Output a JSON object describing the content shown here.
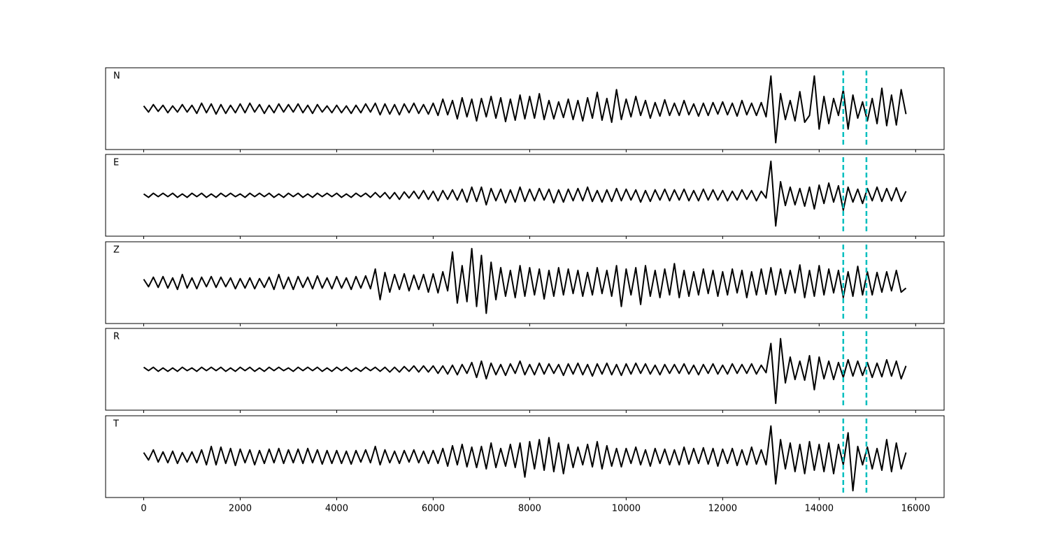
{
  "chart_data": {
    "type": "line",
    "layout": "stacked",
    "x": [
      0,
      100,
      200,
      300,
      400,
      500,
      600,
      700,
      800,
      900,
      1000,
      1100,
      1200,
      1300,
      1400,
      1500,
      1600,
      1700,
      1800,
      1900,
      2000,
      2100,
      2200,
      2300,
      2400,
      2500,
      2600,
      2700,
      2800,
      2900,
      3000,
      3100,
      3200,
      3300,
      3400,
      3500,
      3600,
      3700,
      3800,
      3900,
      4000,
      4100,
      4200,
      4300,
      4400,
      4500,
      4600,
      4700,
      4800,
      4900,
      5000,
      5100,
      5200,
      5300,
      5400,
      5500,
      5600,
      5700,
      5800,
      5900,
      6000,
      6100,
      6200,
      6300,
      6400,
      6500,
      6600,
      6700,
      6800,
      6900,
      7000,
      7100,
      7200,
      7300,
      7400,
      7500,
      7600,
      7700,
      7800,
      7900,
      8000,
      8100,
      8200,
      8300,
      8400,
      8500,
      8600,
      8700,
      8800,
      8900,
      9000,
      9100,
      9200,
      9300,
      9400,
      9500,
      9600,
      9700,
      9800,
      9900,
      10000,
      10100,
      10200,
      10300,
      10400,
      10500,
      10600,
      10700,
      10800,
      10900,
      11000,
      11100,
      11200,
      11300,
      11400,
      11500,
      11600,
      11700,
      11800,
      11900,
      12000,
      12100,
      12200,
      12300,
      12400,
      12500,
      12600,
      12700,
      12800,
      12900,
      13000,
      13100,
      13200,
      13300,
      13400,
      13500,
      13600,
      13700,
      13800,
      13900,
      14000,
      14100,
      14200,
      14300,
      14400,
      14500,
      14600,
      14700,
      14800,
      14900,
      15000,
      15100,
      15200,
      15300,
      15400,
      15500,
      15600,
      15700,
      15800
    ],
    "series": [
      {
        "name": "N",
        "color": "#000000",
        "values": [
          4,
          -5,
          6,
          -4,
          5,
          -6,
          4,
          -5,
          6,
          -5,
          5,
          -7,
          8,
          -6,
          7,
          -8,
          6,
          -7,
          5,
          -6,
          7,
          -6,
          8,
          -5,
          6,
          -7,
          5,
          -6,
          7,
          -5,
          6,
          -5,
          7,
          -6,
          5,
          -7,
          6,
          -5,
          4,
          -6,
          5,
          -6,
          4,
          -7,
          5,
          -6,
          7,
          -5,
          8,
          -9,
          7,
          -8,
          6,
          -9,
          7,
          -6,
          8,
          -7,
          6,
          -8,
          8,
          -10,
          14,
          -9,
          12,
          -15,
          16,
          -12,
          14,
          -18,
          15,
          -12,
          18,
          -14,
          16,
          -19,
          14,
          -17,
          20,
          -15,
          18,
          -14,
          22,
          -16,
          12,
          -15,
          10,
          -13,
          14,
          -16,
          12,
          -18,
          16,
          -14,
          24,
          -17,
          15,
          -20,
          28,
          -16,
          14,
          -12,
          18,
          -10,
          12,
          -14,
          9,
          -11,
          13,
          -10,
          8,
          -10,
          12,
          -9,
          7,
          -11,
          8,
          -10,
          9,
          -8,
          10,
          -9,
          8,
          -11,
          12,
          -9,
          8,
          -10,
          9,
          -12,
          48,
          -50,
          22,
          -16,
          12,
          -18,
          25,
          -20,
          -10,
          48,
          -30,
          18,
          -22,
          15,
          -10,
          28,
          -30,
          20,
          -14,
          10,
          -18,
          15,
          -22,
          30,
          -25,
          20,
          -24,
          28,
          -8
        ]
      },
      {
        "name": "E",
        "color": "#000000",
        "values": [
          2,
          -3,
          3,
          -2,
          3,
          -2,
          3,
          -3,
          2,
          -3,
          3,
          -2,
          3,
          -3,
          2,
          -3,
          3,
          -2,
          3,
          -2,
          2,
          -3,
          3,
          -2,
          3,
          -2,
          3,
          -3,
          2,
          -3,
          3,
          -2,
          3,
          -3,
          2,
          -3,
          3,
          -2,
          3,
          -2,
          3,
          -3,
          2,
          -3,
          3,
          -2,
          3,
          -3,
          4,
          -3,
          4,
          -5,
          4,
          -6,
          5,
          -4,
          6,
          -5,
          7,
          -6,
          6,
          -8,
          7,
          -6,
          8,
          -7,
          9,
          -10,
          12,
          -9,
          12,
          -14,
          10,
          -8,
          9,
          -11,
          8,
          -10,
          12,
          -9,
          9,
          -8,
          10,
          -7,
          9,
          -11,
          8,
          -10,
          9,
          -8,
          10,
          -8,
          12,
          -9,
          7,
          -10,
          8,
          -9,
          10,
          -8,
          9,
          -7,
          8,
          -10,
          7,
          -9,
          8,
          -7,
          9,
          -8,
          8,
          -7,
          9,
          -8,
          7,
          -8,
          9,
          -7,
          8,
          -7,
          7,
          -8,
          6,
          -7,
          8,
          -6,
          7,
          -8,
          6,
          -4,
          50,
          -45,
          20,
          -15,
          12,
          -14,
          10,
          -16,
          12,
          -20,
          15,
          -12,
          18,
          -10,
          14,
          -22,
          12,
          -10,
          9,
          -12,
          10,
          -8,
          12,
          -9,
          10,
          -8,
          11,
          -9,
          6
        ]
      },
      {
        "name": "Z",
        "color": "#000000",
        "values": [
          5,
          -6,
          8,
          -7,
          9,
          -8,
          7,
          -10,
          12,
          -8,
          7,
          -9,
          8,
          -6,
          9,
          -7,
          8,
          -6,
          7,
          -9,
          6,
          -8,
          7,
          -9,
          6,
          -7,
          8,
          -10,
          12,
          -9,
          8,
          -10,
          9,
          -7,
          8,
          -9,
          10,
          -8,
          7,
          -9,
          9,
          -8,
          7,
          -10,
          9,
          -8,
          10,
          -9,
          20,
          -25,
          15,
          -14,
          12,
          -10,
          13,
          -12,
          11,
          -10,
          12,
          -14,
          13,
          -15,
          16,
          -12,
          45,
          -30,
          25,
          -28,
          50,
          -35,
          40,
          -45,
          30,
          -25,
          22,
          -20,
          18,
          -22,
          25,
          -20,
          22,
          -18,
          20,
          -24,
          18,
          -20,
          22,
          -18,
          20,
          -16,
          18,
          -20,
          15,
          -18,
          22,
          -16,
          18,
          -20,
          25,
          -35,
          20,
          -18,
          22,
          -32,
          25,
          -20,
          18,
          -22,
          20,
          -18,
          28,
          -22,
          18,
          -20,
          16,
          -18,
          20,
          -16,
          18,
          -20,
          16,
          -18,
          20,
          -15,
          18,
          -22,
          16,
          -18,
          20,
          -17,
          22,
          -18,
          20,
          -16,
          18,
          -15,
          26,
          -22,
          18,
          -20,
          25,
          -18,
          20,
          -15,
          18,
          -22,
          16,
          -20,
          24,
          -18,
          16,
          -18,
          15,
          -14,
          16,
          -12,
          18,
          -14,
          -8
        ]
      },
      {
        "name": "R",
        "color": "#000000",
        "values": [
          3,
          -2,
          3,
          -3,
          2,
          -3,
          2,
          -3,
          3,
          -2,
          2,
          -3,
          3,
          -2,
          3,
          -2,
          3,
          -3,
          2,
          -3,
          3,
          -2,
          3,
          -3,
          2,
          -3,
          3,
          -2,
          3,
          -2,
          2,
          -3,
          3,
          -2,
          3,
          -2,
          3,
          -3,
          2,
          -3,
          3,
          -2,
          3,
          -3,
          2,
          -3,
          3,
          -2,
          3,
          -3,
          3,
          -4,
          3,
          -4,
          4,
          -3,
          5,
          -4,
          5,
          -4,
          5,
          -6,
          5,
          -7,
          6,
          -8,
          7,
          -6,
          10,
          -12,
          12,
          -14,
          9,
          -8,
          7,
          -9,
          8,
          -6,
          12,
          -8,
          7,
          -8,
          9,
          -7,
          8,
          -6,
          7,
          -9,
          8,
          -7,
          9,
          -8,
          7,
          -10,
          8,
          -7,
          9,
          -8,
          7,
          -9,
          8,
          -7,
          9,
          -6,
          8,
          -7,
          6,
          -8,
          7,
          -6,
          7,
          -6,
          8,
          -7,
          6,
          -8,
          7,
          -6,
          8,
          -7,
          6,
          -7,
          8,
          -6,
          7,
          -6,
          8,
          -7,
          6,
          -5,
          38,
          -50,
          45,
          -20,
          18,
          -15,
          12,
          -16,
          20,
          -30,
          18,
          -14,
          12,
          -15,
          10,
          -12,
          14,
          -10,
          12,
          -9,
          10,
          -12,
          9,
          -11,
          14,
          -10,
          12,
          -14,
          5
        ]
      },
      {
        "name": "T",
        "color": "#000000",
        "values": [
          6,
          -5,
          10,
          -8,
          7,
          -9,
          8,
          -10,
          6,
          -8,
          7,
          -9,
          10,
          -12,
          15,
          -12,
          14,
          -10,
          12,
          -13,
          11,
          -9,
          10,
          -12,
          9,
          -10,
          11,
          -9,
          12,
          -10,
          10,
          -9,
          11,
          -10,
          12,
          -9,
          10,
          -11,
          9,
          -10,
          9,
          -10,
          8,
          -11,
          9,
          -8,
          10,
          -9,
          15,
          -12,
          10,
          -9,
          8,
          -10,
          9,
          -8,
          10,
          -9,
          8,
          -10,
          9,
          -10,
          12,
          -14,
          16,
          -12,
          18,
          -15,
          14,
          -16,
          15,
          -18,
          20,
          -16,
          12,
          -14,
          18,
          -16,
          20,
          -30,
          22,
          -18,
          25,
          -20,
          28,
          -22,
          20,
          -25,
          18,
          -16,
          14,
          -12,
          18,
          -15,
          22,
          -18,
          16,
          -14,
          12,
          -15,
          12,
          -10,
          14,
          -12,
          10,
          -14,
          12,
          -10,
          11,
          -12,
          10,
          -12,
          14,
          -11,
          12,
          -10,
          13,
          -11,
          12,
          -14,
          11,
          -10,
          12,
          -13,
          10,
          -12,
          14,
          -11,
          10,
          -12,
          45,
          -40,
          25,
          -18,
          20,
          -22,
          18,
          -25,
          22,
          -20,
          18,
          -22,
          20,
          -25,
          18,
          -12,
          35,
          -50,
          15,
          -12,
          14,
          -18,
          12,
          -20,
          25,
          -22,
          20,
          -18,
          6
        ]
      }
    ],
    "xlim": [
      -790,
      16590
    ],
    "xticks": [
      0,
      2000,
      4000,
      6000,
      8000,
      10000,
      12000,
      14000,
      16000
    ],
    "ylim": [
      -60,
      60
    ],
    "vlines": [
      14500,
      14980
    ],
    "vline_color": "#00bfbf"
  }
}
